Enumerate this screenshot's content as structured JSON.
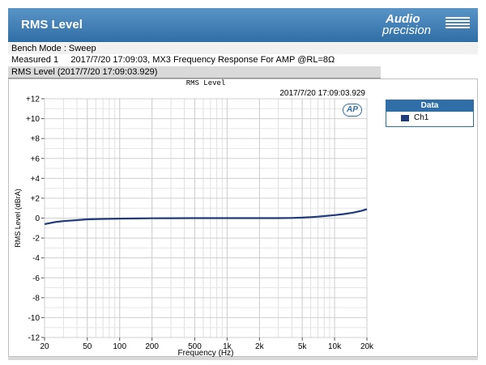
{
  "header": {
    "title": "RMS Level",
    "logo_line1": "Audio",
    "logo_line2": "precision"
  },
  "info": {
    "bench_mode": "Bench Mode : Sweep",
    "measured": "Measured 1     2017/7/20 17:09:03, MX3 Frequency Response For AMP @RL=8Ω"
  },
  "subtitle": "RMS Level (2017/7/20 17:09:03.929)",
  "legend": {
    "title": "Data",
    "items": [
      {
        "label": "Ch1",
        "color": "#1f3b7a"
      }
    ]
  },
  "badge": "AP",
  "chart_data": {
    "type": "line",
    "title": "RMS Level",
    "subtitle": "2017/7/20 17:09:03.929",
    "xlabel": "Frequency (Hz)",
    "ylabel": "RMS Level (dBrA)",
    "xscale": "log",
    "xlim": [
      20,
      20000
    ],
    "ylim": [
      -12,
      12
    ],
    "x_ticks": [
      20,
      50,
      100,
      200,
      500,
      1000,
      2000,
      5000,
      10000,
      20000
    ],
    "x_tick_labels": [
      "20",
      "50",
      "100",
      "200",
      "500",
      "1k",
      "2k",
      "5k",
      "10k",
      "20k"
    ],
    "y_ticks": [
      -12,
      -10,
      -8,
      -6,
      -4,
      -2,
      0,
      2,
      4,
      6,
      8,
      10,
      12
    ],
    "y_tick_labels": [
      "-12",
      "-10",
      "-8",
      "-6",
      "-4",
      "-2",
      "0",
      "+2",
      "+4",
      "+6",
      "+8",
      "+10",
      "+12"
    ],
    "grid": true,
    "legend_position": "right",
    "series": [
      {
        "name": "Ch1",
        "color": "#1f3b7a",
        "x": [
          20,
          25,
          30,
          40,
          50,
          70,
          100,
          150,
          200,
          300,
          500,
          700,
          1000,
          2000,
          3000,
          4000,
          5000,
          6000,
          7000,
          8000,
          10000,
          12000,
          15000,
          18000,
          20000
        ],
        "values": [
          -0.6,
          -0.4,
          -0.3,
          -0.2,
          -0.12,
          -0.08,
          -0.05,
          -0.03,
          -0.02,
          -0.01,
          0.0,
          0.0,
          0.0,
          0.0,
          0.0,
          0.02,
          0.05,
          0.1,
          0.15,
          0.2,
          0.3,
          0.4,
          0.55,
          0.75,
          0.9
        ]
      }
    ]
  }
}
